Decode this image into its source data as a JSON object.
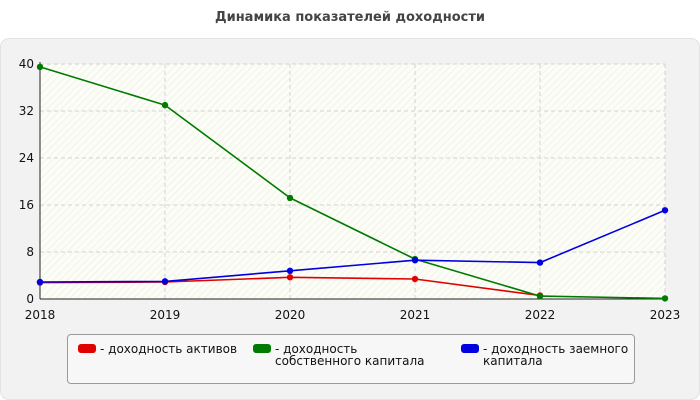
{
  "chart_data": {
    "type": "line",
    "title": "Динамика показателей доходности",
    "xlabel": "",
    "ylabel": "",
    "x": [
      "2018",
      "2019",
      "2020",
      "2021",
      "2022",
      "2023"
    ],
    "ylim": [
      0,
      40
    ],
    "yticks": [
      "0",
      "8",
      "16",
      "24",
      "32",
      "40"
    ],
    "grid": true,
    "legend_position": "bottom",
    "series": [
      {
        "name": "- доходность активов",
        "color": "#e00000",
        "values": [
          2.8,
          2.9,
          3.7,
          3.4,
          0.6,
          null
        ]
      },
      {
        "name": "- доходность собственного капитала",
        "color": "#007a00",
        "values": [
          39.5,
          33.0,
          17.2,
          6.8,
          0.5,
          0.1
        ]
      },
      {
        "name": "- доходность заемного капитала",
        "color": "#0000e0",
        "values": [
          2.9,
          3.0,
          4.8,
          6.6,
          6.2,
          15.1
        ]
      }
    ]
  }
}
